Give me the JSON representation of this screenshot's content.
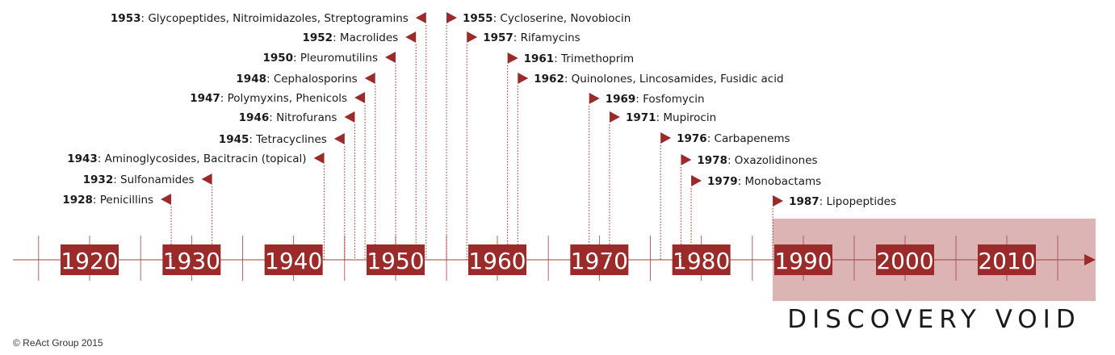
{
  "decades": [
    "1920",
    "1930",
    "1940",
    "1950",
    "1960",
    "1970",
    "1980",
    "1990",
    "2000",
    "2010"
  ],
  "discoveries_left": [
    {
      "year": "1953",
      "classes": "Glycopeptides, Nitroimidazoles, Streptogramins"
    },
    {
      "year": "1952",
      "classes": "Macrolides"
    },
    {
      "year": "1950",
      "classes": "Pleuromutilins"
    },
    {
      "year": "1948",
      "classes": "Cephalosporins"
    },
    {
      "year": "1947",
      "classes": "Polymyxins, Phenicols"
    },
    {
      "year": "1946",
      "classes": "Nitrofurans"
    },
    {
      "year": "1945",
      "classes": "Tetracyclines"
    },
    {
      "year": "1943",
      "classes": "Aminoglycosides, Bacitracin (topical)"
    },
    {
      "year": "1932",
      "classes": "Sulfonamides"
    },
    {
      "year": "1928",
      "classes": "Penicillins"
    }
  ],
  "discoveries_right": [
    {
      "year": "1955",
      "classes": "Cycloserine, Novobiocin"
    },
    {
      "year": "1957",
      "classes": "Rifamycins"
    },
    {
      "year": "1961",
      "classes": "Trimethoprim"
    },
    {
      "year": "1962",
      "classes": "Quinolones, Lincosamides, Fusidic acid"
    },
    {
      "year": "1969",
      "classes": "Fosfomycin"
    },
    {
      "year": "1971",
      "classes": "Mupirocin"
    },
    {
      "year": "1976",
      "classes": "Carbapenems"
    },
    {
      "year": "1978",
      "classes": "Oxazolidinones"
    },
    {
      "year": "1979",
      "classes": "Monobactams"
    },
    {
      "year": "1987",
      "classes": "Lipopeptides"
    }
  ],
  "void_label": "DISCOVERY VOID",
  "copyright": "© ReAct Group 2015",
  "colors": {
    "accent": "#9b2a2a",
    "void_fill": "#dcb4b4",
    "axis": "#a04040",
    "text": "#1a1a1a"
  }
}
